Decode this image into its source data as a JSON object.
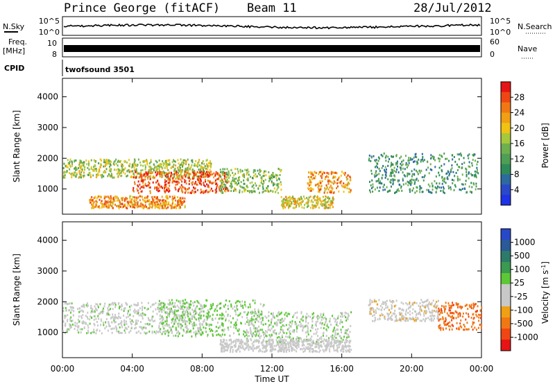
{
  "header": {
    "station": "Prince George (fitACF)",
    "beam": "Beam 11",
    "date": "28/Jul/2012"
  },
  "strips": {
    "nsky_label": "N.Sky",
    "nsky_ticks": [
      "10^5",
      "10^0"
    ],
    "nsearch_label": "N.Search",
    "nsearch_ticks": [
      "10^5",
      "10^0"
    ],
    "freq_label": "Freq.",
    "freq_unit": "[MHz]",
    "freq_ticks": [
      "10",
      "8"
    ],
    "nave_label": "Nave",
    "nave_ticks": [
      "60",
      "0"
    ],
    "cpid_label": "CPID",
    "cpid_value": "twofsound 3501"
  },
  "colors": {
    "power_scale": [
      "#1e32e6",
      "#2a48c8",
      "#2c6aa0",
      "#2e8b57",
      "#4f9e55",
      "#6fb04e",
      "#a6c83c",
      "#f0c214",
      "#f0a014",
      "#f07814",
      "#f04614",
      "#e61414"
    ],
    "velocity_scale": [
      "#2848c8",
      "#2a5a98",
      "#2e7a6a",
      "#3a9a50",
      "#5cc836",
      "#c8c8c8",
      "#c8c8c8",
      "#f0a014",
      "#f07814",
      "#f04614",
      "#e61414"
    ]
  },
  "chart_data": [
    {
      "type": "heatmap",
      "title": "",
      "xlabel": "",
      "ylabel": "Slant Range [km]",
      "x_ticks": [
        "00:00",
        "04:00",
        "08:00",
        "12:00",
        "16:00",
        "20:00",
        "00:00"
      ],
      "y_ticks": [
        1000,
        2000,
        3000,
        4000
      ],
      "xlim_hours": [
        0,
        24
      ],
      "ylim_km": [
        180,
        4600
      ],
      "colorbar": {
        "label": "Power [dB]",
        "ticks": [
          "28",
          "24",
          "20",
          "16",
          "12",
          "8",
          "4"
        ],
        "range": [
          0,
          30
        ]
      },
      "regions": [
        {
          "t": [
            0.0,
            8.5
          ],
          "r": [
            1400,
            2000
          ],
          "value": 16
        },
        {
          "t": [
            4.0,
            9.5
          ],
          "r": [
            900,
            1600
          ],
          "value": 26
        },
        {
          "t": [
            1.5,
            7.0
          ],
          "r": [
            400,
            800
          ],
          "value": 22
        },
        {
          "t": [
            9.0,
            12.5
          ],
          "r": [
            900,
            1700
          ],
          "value": 14
        },
        {
          "t": [
            12.5,
            15.5
          ],
          "r": [
            400,
            800
          ],
          "value": 18
        },
        {
          "t": [
            14.0,
            16.5
          ],
          "r": [
            900,
            1600
          ],
          "value": 22
        },
        {
          "t": [
            17.5,
            23.8
          ],
          "r": [
            900,
            2200
          ],
          "value": 10
        }
      ]
    },
    {
      "type": "heatmap",
      "title": "",
      "xlabel": "Time UT",
      "ylabel": "Slant Range [km]",
      "x_ticks": [
        "00:00",
        "04:00",
        "08:00",
        "12:00",
        "16:00",
        "20:00",
        "00:00"
      ],
      "y_ticks": [
        1000,
        2000,
        3000,
        4000
      ],
      "xlim_hours": [
        0,
        24
      ],
      "ylim_km": [
        180,
        4600
      ],
      "colorbar": {
        "label": "Velocity [m s",
        "label_sup": "-1",
        "label_end": "]",
        "ticks": [
          "1000",
          "500",
          "100",
          "25",
          "-25",
          "-100",
          "-500",
          "-1000"
        ],
        "range": [
          -1200,
          1200
        ]
      },
      "regions": [
        {
          "t": [
            0.0,
            8.0
          ],
          "r": [
            1000,
            2000
          ],
          "value": 0
        },
        {
          "t": [
            5.5,
            11.5
          ],
          "r": [
            900,
            2100
          ],
          "value": 150
        },
        {
          "t": [
            10.5,
            16.5
          ],
          "r": [
            700,
            1700
          ],
          "value": 60
        },
        {
          "t": [
            9.0,
            16.5
          ],
          "r": [
            400,
            800
          ],
          "value": -120
        },
        {
          "t": [
            17.5,
            21.5
          ],
          "r": [
            1400,
            2100
          ],
          "value": -220
        },
        {
          "t": [
            21.5,
            24.0
          ],
          "r": [
            1100,
            2000
          ],
          "value": -700
        }
      ]
    }
  ]
}
